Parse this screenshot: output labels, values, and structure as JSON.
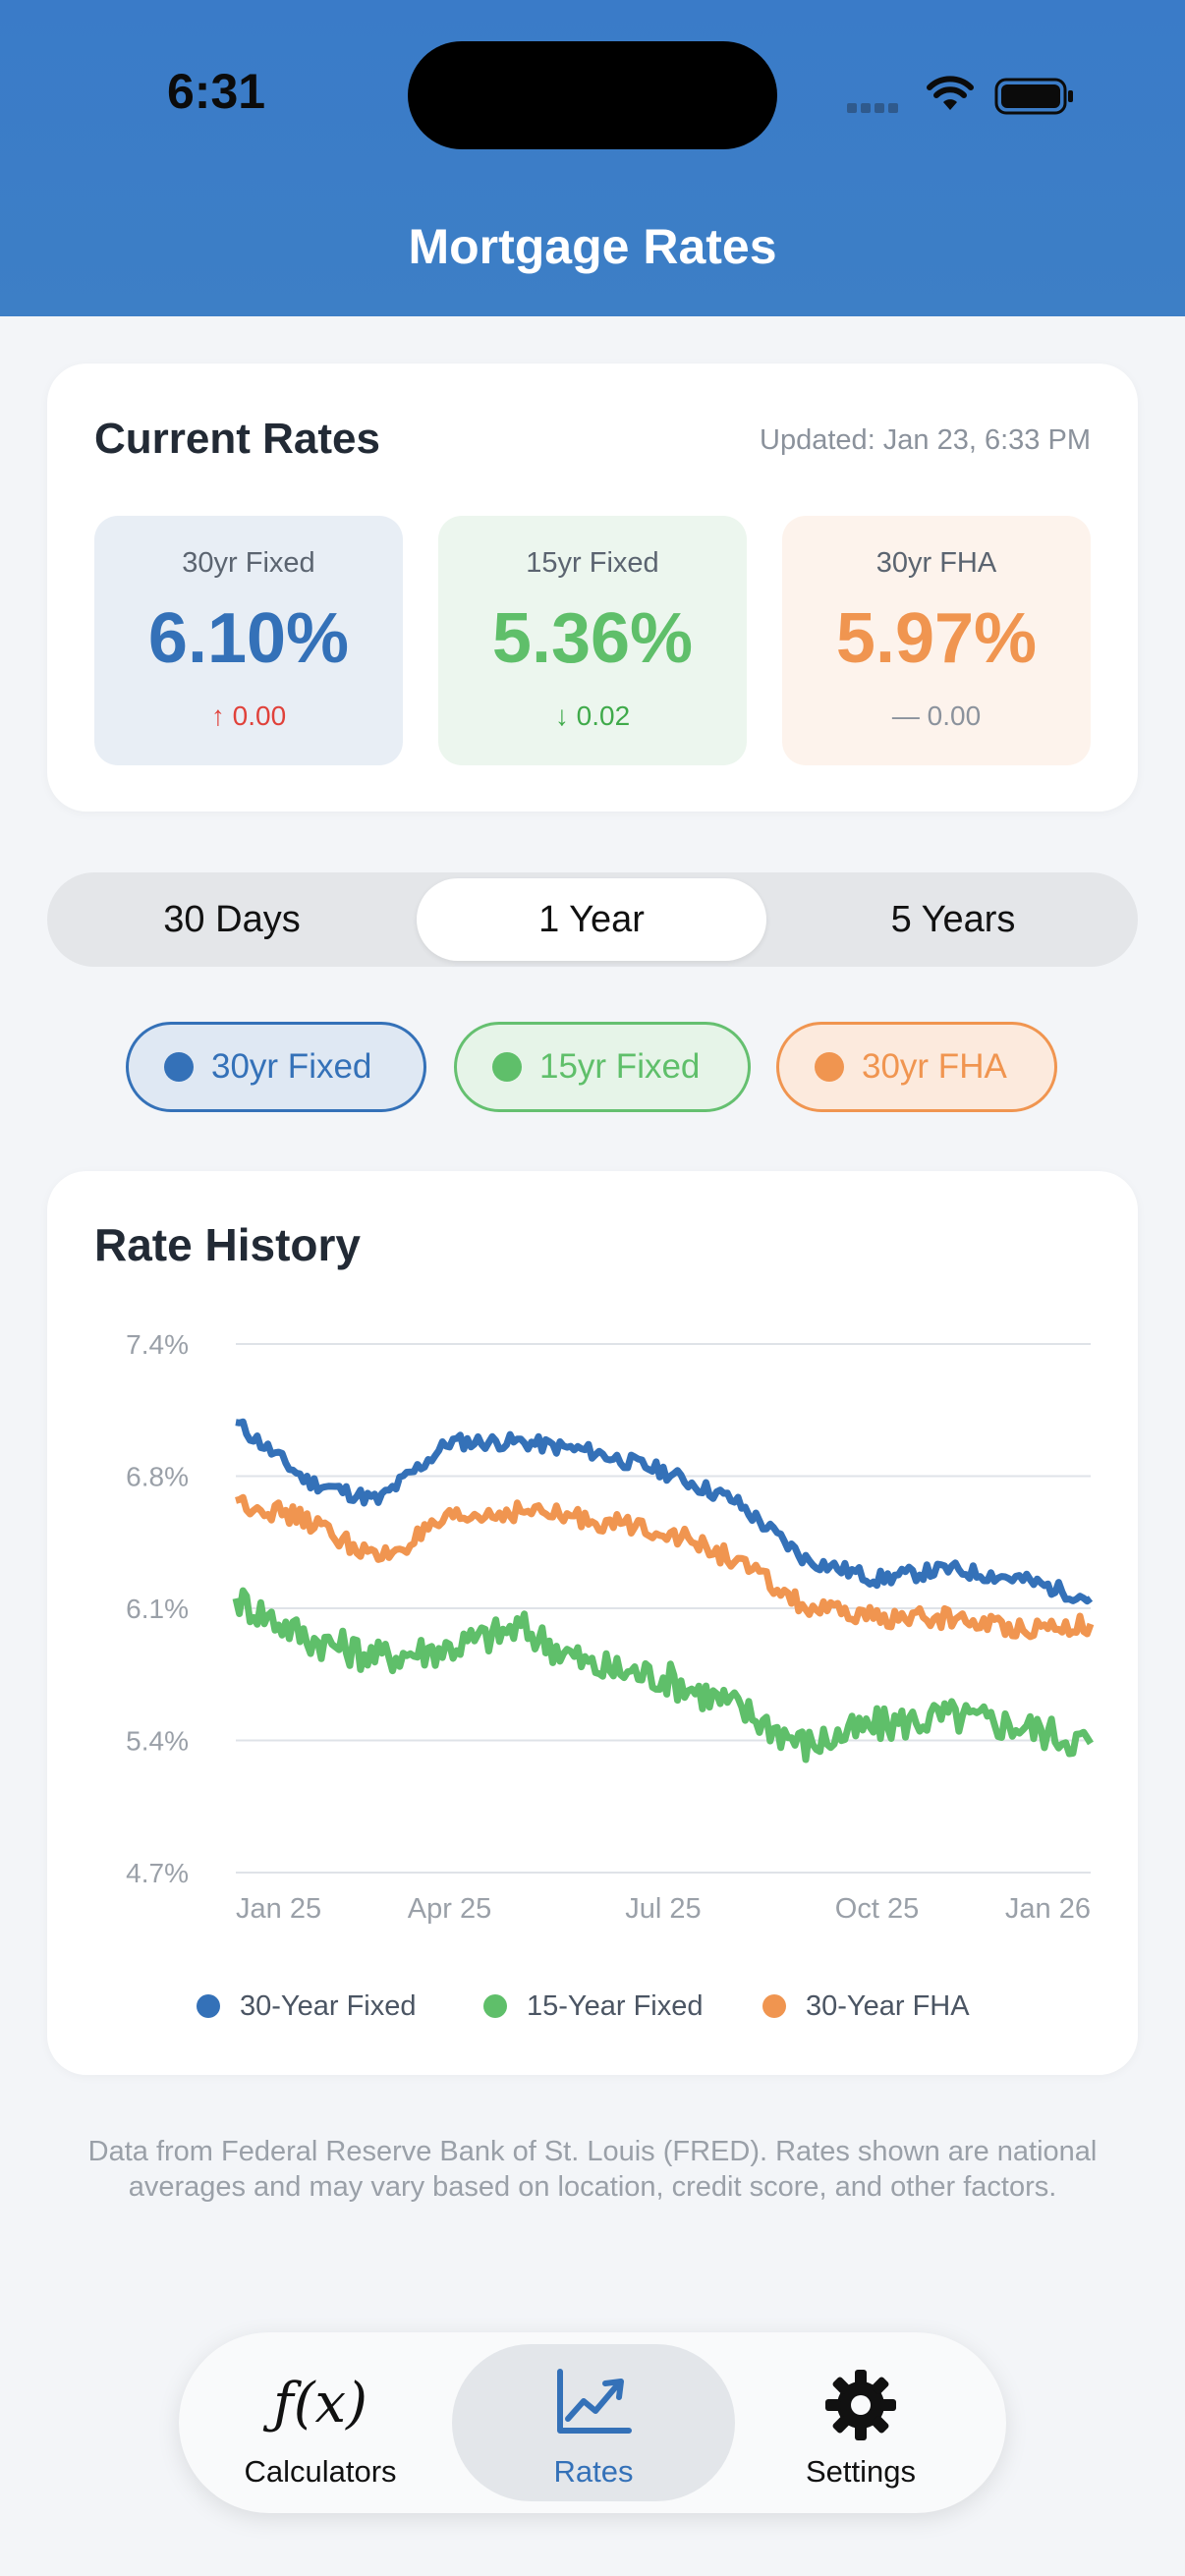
{
  "status_bar": {
    "time": "6:31"
  },
  "header": {
    "title": "Mortgage Rates"
  },
  "current_rates": {
    "title": "Current Rates",
    "updated": "Updated: Jan 23, 6:33 PM",
    "items": [
      {
        "label": "30yr Fixed",
        "value": "6.10%",
        "change": "↑ 0.00"
      },
      {
        "label": "15yr Fixed",
        "value": "5.36%",
        "change": "↓ 0.02"
      },
      {
        "label": "30yr FHA",
        "value": "5.97%",
        "change": "— 0.00"
      }
    ]
  },
  "range_selector": {
    "options": [
      "30 Days",
      "1 Year",
      "5 Years"
    ],
    "selected": "1 Year"
  },
  "series_toggles": [
    {
      "label": "30yr Fixed",
      "color": "#3471b8",
      "active": true
    },
    {
      "label": "15yr Fixed",
      "color": "#5fbf6a",
      "active": true
    },
    {
      "label": "30yr FHA",
      "color": "#f09550",
      "active": true
    }
  ],
  "rate_history": {
    "title": "Rate History",
    "legend": [
      "30-Year Fixed",
      "15-Year Fixed",
      "30-Year FHA"
    ]
  },
  "chart_data": {
    "type": "line",
    "title": "Rate History",
    "ylim": [
      4.7,
      7.4
    ],
    "y_ticks": [
      "7.4%",
      "6.8%",
      "6.1%",
      "5.4%",
      "4.7%"
    ],
    "x_ticks": [
      "Jan 25",
      "Apr 25",
      "Jul 25",
      "Oct 25",
      "Jan 26"
    ],
    "grid": true,
    "legend_position": "bottom",
    "x": [
      "Jan 25",
      "Feb 25",
      "Mar 25",
      "Apr 25",
      "May 25",
      "Jun 25",
      "Jul 25",
      "Aug 25",
      "Sep 25",
      "Oct 25",
      "Nov 25",
      "Dec 25",
      "Jan 26"
    ],
    "series": [
      {
        "name": "30-Year Fixed",
        "color": "#3471b8",
        "values": [
          7.0,
          6.7,
          6.6,
          6.9,
          6.9,
          6.85,
          6.75,
          6.6,
          6.3,
          6.2,
          6.25,
          6.2,
          6.1
        ]
      },
      {
        "name": "15-Year Fixed",
        "color": "#5fbf6a",
        "values": [
          6.1,
          5.9,
          5.8,
          5.85,
          5.95,
          5.75,
          5.7,
          5.55,
          5.35,
          5.45,
          5.5,
          5.45,
          5.36
        ]
      },
      {
        "name": "30-Year FHA",
        "color": "#f09550",
        "values": [
          6.6,
          6.5,
          6.3,
          6.5,
          6.55,
          6.5,
          6.45,
          6.3,
          6.05,
          6.0,
          6.0,
          5.95,
          5.97
        ]
      }
    ]
  },
  "footnote": "Data from Federal Reserve Bank of St. Louis (FRED). Rates shown are national averages and may vary based on location, credit score, and other factors.",
  "tab_bar": {
    "calc_glyph": "ƒ(x)",
    "items": [
      "Calculators",
      "Rates",
      "Settings"
    ],
    "selected": "Rates"
  }
}
